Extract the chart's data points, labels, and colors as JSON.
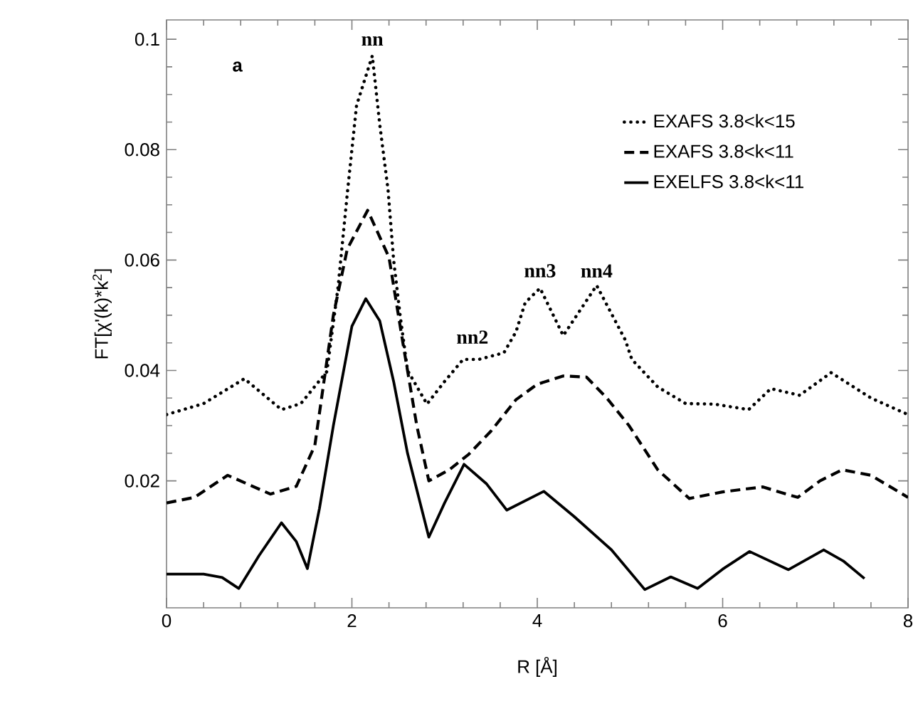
{
  "chart_data": {
    "type": "line",
    "xlabel": "R [Å]",
    "ylabel": "FT[χ'(k)*k$^{2}$]",
    "xlim": [
      0,
      8
    ],
    "ylim": [
      -0.003,
      0.1035
    ],
    "xticks": [
      0,
      2,
      4,
      6,
      8
    ],
    "yticks": [
      0.02,
      0.04,
      0.06,
      0.08,
      0.1
    ],
    "legend": "top right",
    "annotations": [
      "a",
      {
        "text": "nn",
        "x": 2.22,
        "y": 0.097
      },
      {
        "text": "nn2",
        "x": 3.3,
        "y": 0.043
      },
      {
        "text": "nn3",
        "x": 4.03,
        "y": 0.055
      },
      {
        "text": "nn4",
        "x": 4.64,
        "y": 0.055
      }
    ],
    "series": [
      {
        "name": "EXAFS 3.8<k<15",
        "color": "#000000",
        "line_style": "dotted",
        "x": [
          0,
          0.4,
          0.84,
          1.24,
          1.45,
          1.73,
          1.85,
          1.95,
          2.05,
          2.22,
          2.3,
          2.39,
          2.45,
          2.52,
          2.6,
          2.81,
          3.0,
          3.2,
          3.37,
          3.64,
          3.77,
          3.87,
          4.03,
          4.28,
          4.64,
          4.95,
          5.02,
          5.3,
          5.6,
          5.91,
          6.28,
          6.52,
          6.83,
          7.17,
          7.6,
          8
        ],
        "values": [
          0.032,
          0.034,
          0.0385,
          0.0329,
          0.034,
          0.0398,
          0.055,
          0.072,
          0.088,
          0.097,
          0.0846,
          0.0727,
          0.06,
          0.05,
          0.04,
          0.0339,
          0.038,
          0.042,
          0.042,
          0.0432,
          0.047,
          0.0523,
          0.0549,
          0.0463,
          0.0554,
          0.0455,
          0.042,
          0.037,
          0.034,
          0.0339,
          0.0329,
          0.0367,
          0.0355,
          0.0396,
          0.035,
          0.032
        ]
      },
      {
        "name": "EXAFS 3.8<k<11",
        "color": "#000000",
        "line_style": "dashed",
        "x": [
          0,
          0.3,
          0.66,
          1.12,
          1.4,
          1.6,
          1.8,
          1.95,
          2.17,
          2.4,
          2.55,
          2.7,
          2.83,
          3.05,
          3.26,
          3.5,
          3.77,
          4.0,
          4.28,
          4.53,
          4.75,
          4.99,
          5.3,
          5.64,
          6.0,
          6.43,
          6.81,
          7.05,
          7.29,
          7.6,
          8
        ],
        "values": [
          0.016,
          0.017,
          0.021,
          0.0176,
          0.019,
          0.0264,
          0.05,
          0.062,
          0.069,
          0.0605,
          0.045,
          0.03,
          0.02,
          0.022,
          0.0248,
          0.029,
          0.0347,
          0.0375,
          0.039,
          0.0388,
          0.035,
          0.03,
          0.022,
          0.0168,
          0.018,
          0.0189,
          0.017,
          0.02,
          0.022,
          0.021,
          0.017
        ]
      },
      {
        "name": "EXELFS 3.8<k<11",
        "color": "#000000",
        "line_style": "solid",
        "x": [
          0,
          0.4,
          0.6,
          0.78,
          1.0,
          1.24,
          1.4,
          1.52,
          1.65,
          1.8,
          2.0,
          2.15,
          2.3,
          2.45,
          2.6,
          2.83,
          3.0,
          3.21,
          3.45,
          3.67,
          4.07,
          4.4,
          4.8,
          5.16,
          5.44,
          5.73,
          6.0,
          6.29,
          6.71,
          7.09,
          7.3,
          7.53
        ],
        "values": [
          0.0031,
          0.0031,
          0.0025,
          0.0005,
          0.0065,
          0.0124,
          0.009,
          0.0041,
          0.015,
          0.03,
          0.048,
          0.053,
          0.049,
          0.038,
          0.025,
          0.0098,
          0.016,
          0.023,
          0.0195,
          0.0147,
          0.0181,
          0.0135,
          0.0075,
          0.0003,
          0.0026,
          0.0005,
          0.004,
          0.0072,
          0.0039,
          0.0075,
          0.0055,
          0.0023
        ]
      }
    ]
  }
}
